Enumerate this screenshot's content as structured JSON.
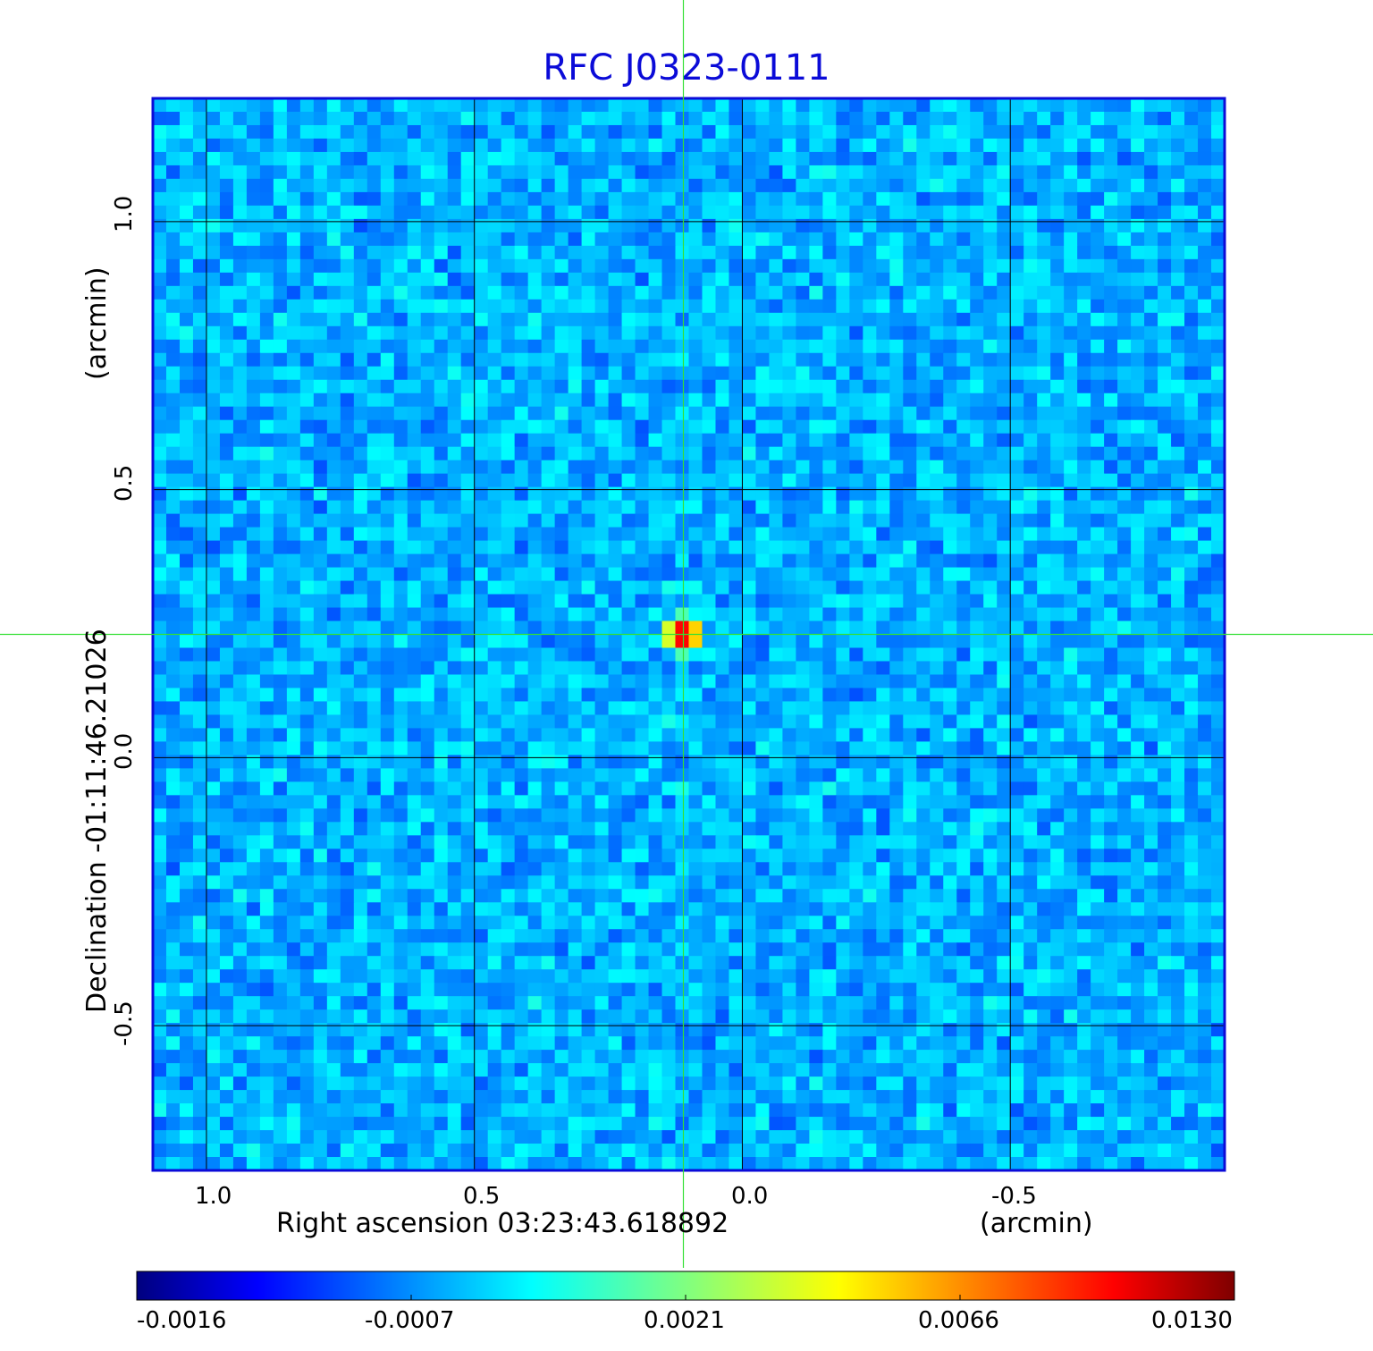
{
  "chart_data": {
    "type": "heatmap",
    "title": "RFC J0323-0111",
    "xlabel": "Right ascension  03:23:43.618892",
    "xunit": "(arcmin)",
    "ylabel": "Declination  -01:11:46.21026",
    "yunit": "(arcmin)",
    "xlim": [
      1.1,
      -0.9
    ],
    "ylim": [
      -0.77,
      1.23
    ],
    "x_ticks": [
      "1.0",
      "0.5",
      "0.0",
      "-0.5"
    ],
    "x_tick_values": [
      1.0,
      0.5,
      0.0,
      -0.5
    ],
    "y_ticks": [
      "-0.5",
      "0.0",
      "0.5",
      "1.0"
    ],
    "y_tick_values": [
      -0.5,
      0.0,
      0.5,
      1.0
    ],
    "grid": true,
    "crosshair": {
      "x": 0.11,
      "y": 0.23
    },
    "source_peak": {
      "x": 0.11,
      "y": 0.23,
      "value": 0.013
    },
    "colorbar": {
      "colormap": "jet",
      "ticks": [
        "-0.0016",
        "-0.0007",
        "0.0021",
        "0.0066",
        "0.0130"
      ],
      "tick_values": [
        -0.0016,
        -0.0007,
        0.0021,
        0.0066,
        0.013
      ]
    },
    "colors": {
      "title": "#0b0bd8",
      "frame": "#0b0bd8",
      "grid": "#000000",
      "crosshair": "#34e034",
      "background_noise": "#19dcf2"
    }
  }
}
